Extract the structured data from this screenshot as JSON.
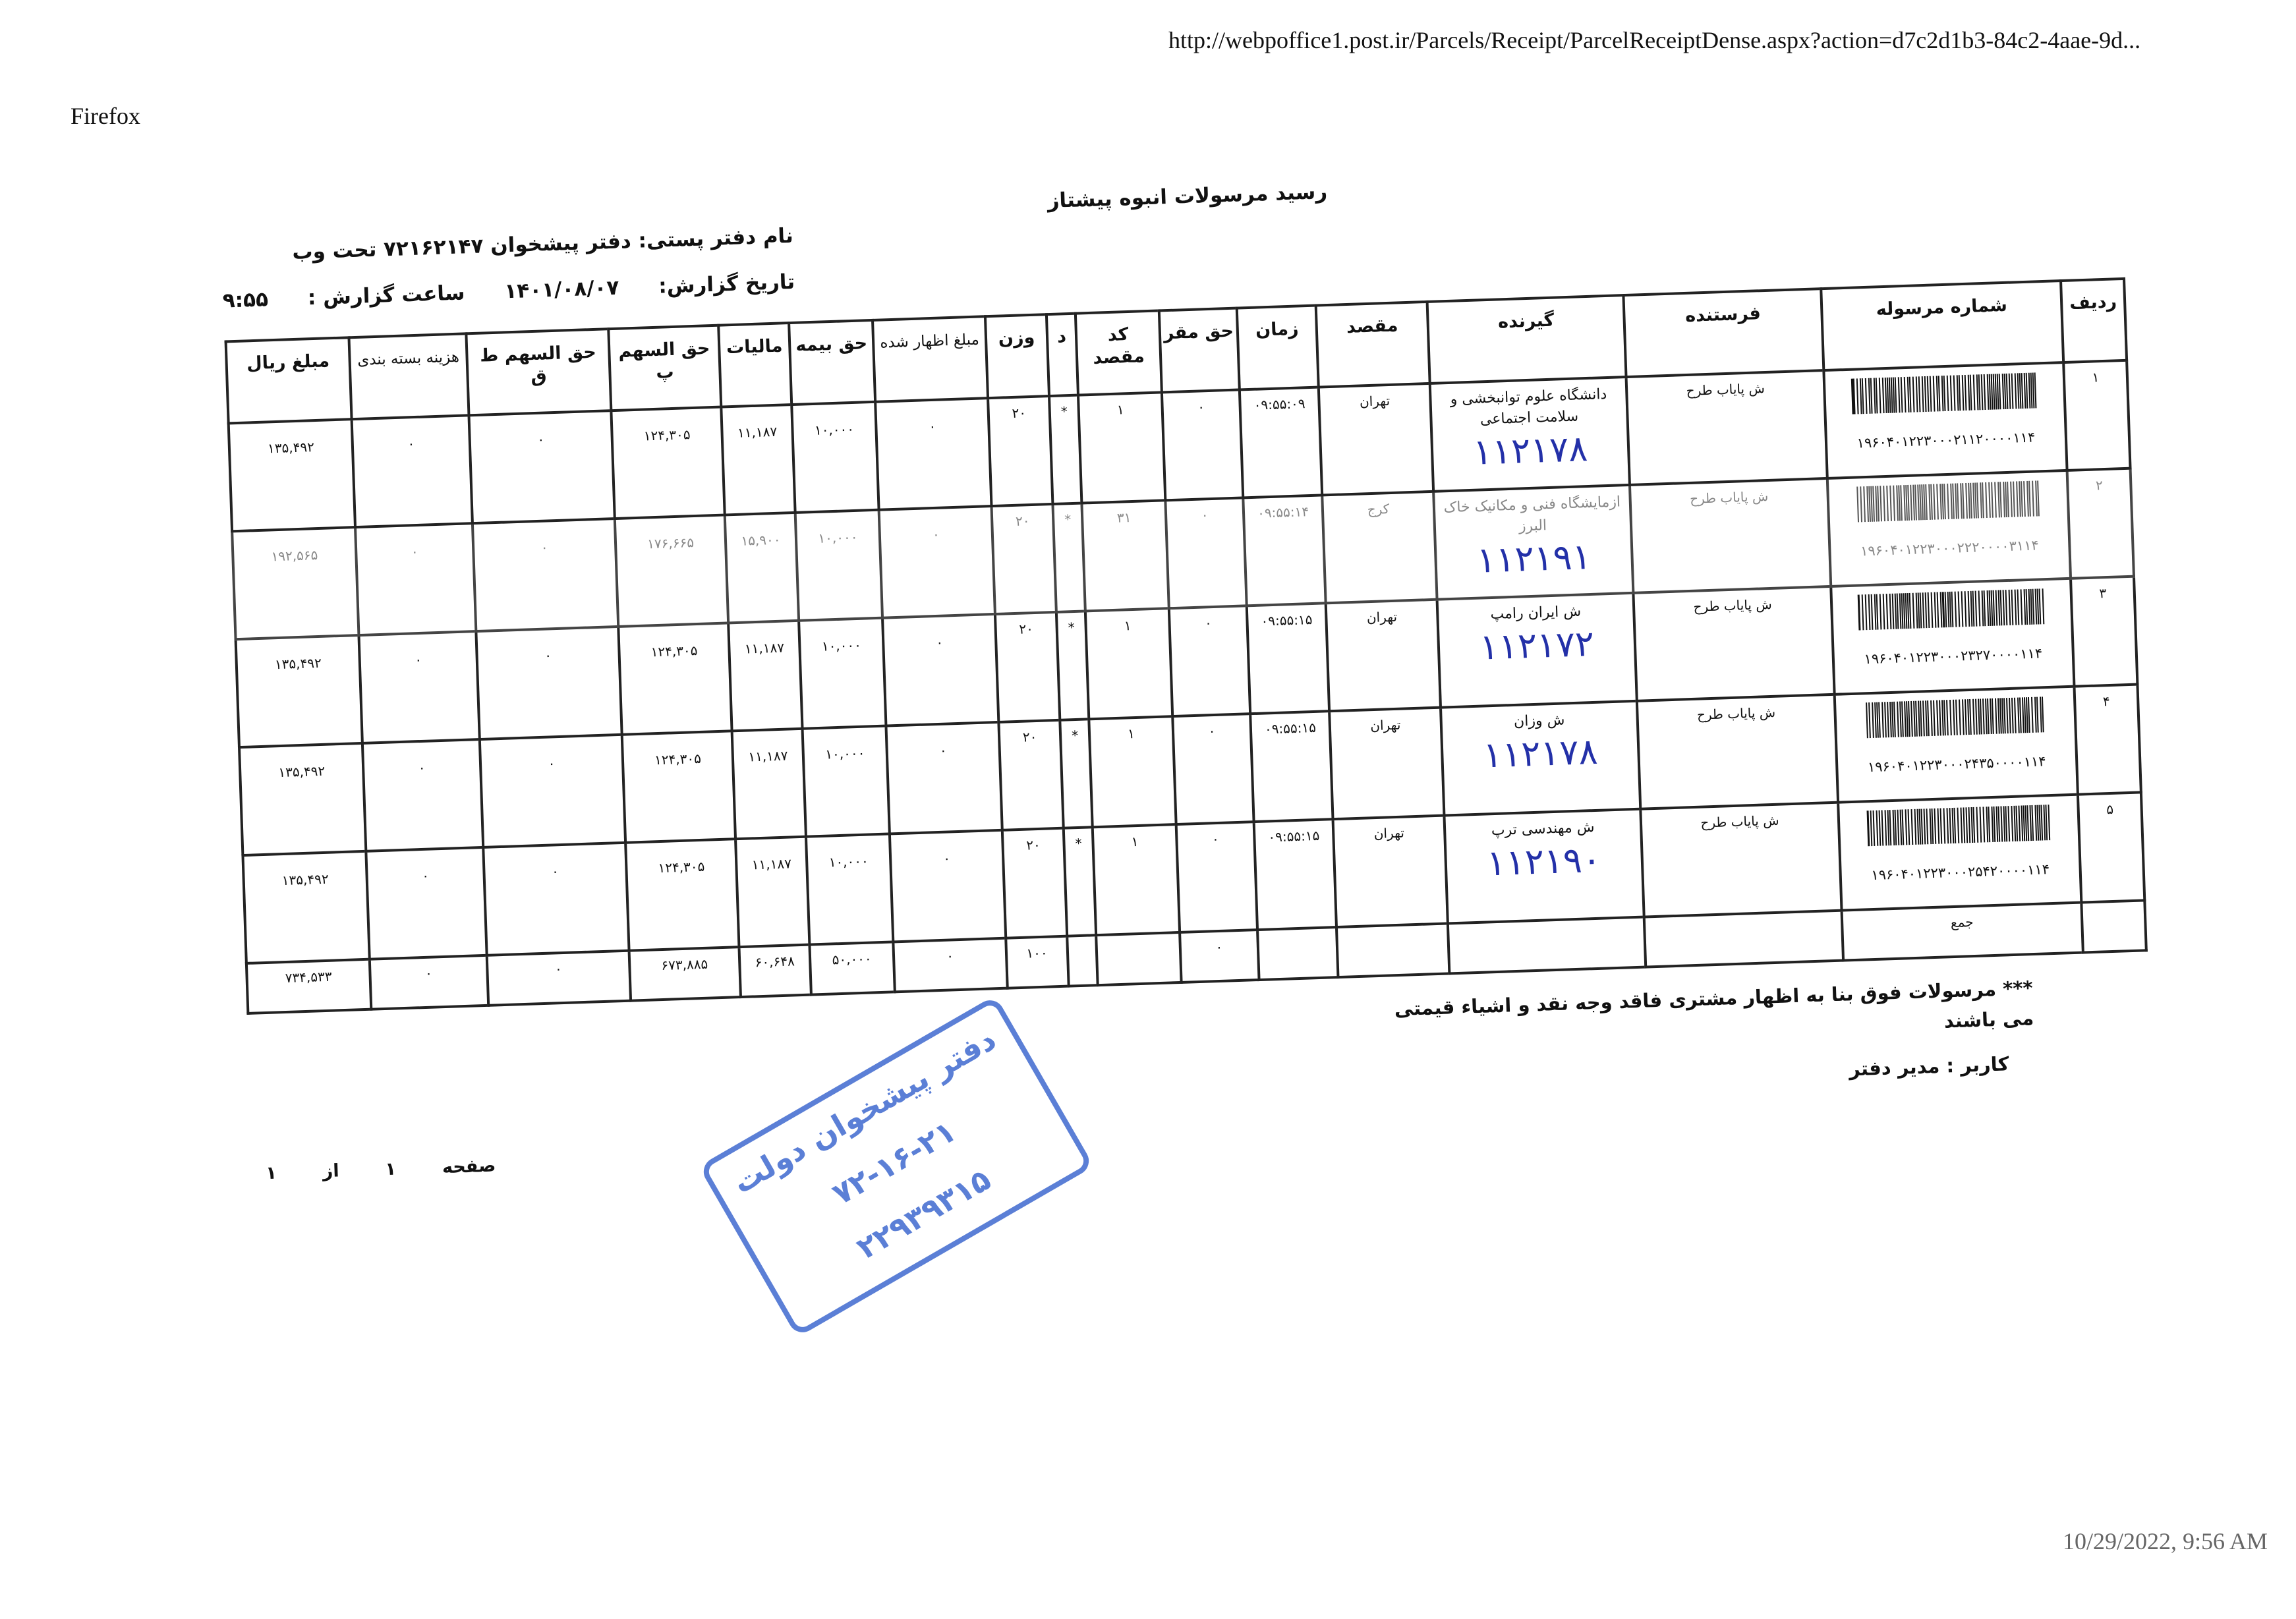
{
  "browser": {
    "name": "Firefox",
    "url": "http://webpoffice1.post.ir/Parcels/Receipt/ParcelReceiptDense.aspx?action=d7c2d1b3-84c2-4aae-9d...",
    "print_datetime": "10/29/2022, 9:56 AM"
  },
  "header": {
    "title": "رسید مرسولات انبوه  پیشتاز",
    "office_label": "نام دفتر پستی:  دفتر پیشخوان ۷۲۱۶۲۱۴۷ تحت وب",
    "report_date_label": "تاریخ گزارش:",
    "report_date": "۱۴۰۱/۰۸/۰۷",
    "report_time_label": "ساعت گزارش :",
    "report_time": "۹:۵۵"
  },
  "table": {
    "columns": [
      "ردیف",
      "شماره مرسوله",
      "فرستنده",
      "گیرنده",
      "مقصد",
      "زمان",
      "حق مقر",
      "کد مقصد",
      "د",
      "وزن",
      "مبلغ اظهار شده",
      "حق بیمه",
      "مالیات",
      "حق السهم پ",
      "حق السهم ط ق",
      "هزینه بسته بندی",
      "مبلغ ریال"
    ],
    "rows": [
      {
        "row": "۱",
        "barcode": "۱۹۶۰۴۰۱۲۲۳۰۰۰۲۱۱۲۰۰۰۰۱۱۴",
        "sender": "ش پایاب طرح",
        "recipient": "دانشگاه علوم توانبخشی و سلامت اجتماعی",
        "handwritten": "۱۱۲۱۷۸",
        "destination": "تهران",
        "time": "۰۹:۵۵:۰۹",
        "base_fee": "۰",
        "dest_code": "۱",
        "d": "*",
        "weight": "۲۰",
        "declared": "۰",
        "insurance": "۱۰,۰۰۰",
        "tax": "۱۱,۱۸۷",
        "share_p": "۱۲۴,۳۰۵",
        "share_tq": "۰",
        "packaging": "۰",
        "amount": "۱۳۵,۴۹۲"
      },
      {
        "row": "۲",
        "barcode": "۱۹۶۰۴۰۱۲۲۳۰۰۰۲۲۲۰۰۰۰۳۱۱۴",
        "sender": "ش پایاب طرح",
        "recipient": "ازمایشگاه فنی و مکانیک خاک البرز",
        "handwritten": "۱۱۲۱۹۱",
        "destination": "کرج",
        "time": "۰۹:۵۵:۱۴",
        "base_fee": "۰",
        "dest_code": "۳۱",
        "d": "*",
        "weight": "۲۰",
        "declared": "۰",
        "insurance": "۱۰,۰۰۰",
        "tax": "۱۵,۹۰۰",
        "share_p": "۱۷۶,۶۶۵",
        "share_tq": "۰",
        "packaging": "۰",
        "amount": "۱۹۲,۵۶۵"
      },
      {
        "row": "۳",
        "barcode": "۱۹۶۰۴۰۱۲۲۳۰۰۰۲۳۲۷۰۰۰۰۱۱۴",
        "sender": "ش پایاب طرح",
        "recipient": "ش ایران رامپ",
        "handwritten": "۱۱۲۱۷۲",
        "destination": "تهران",
        "time": "۰۹:۵۵:۱۵",
        "base_fee": "۰",
        "dest_code": "۱",
        "d": "*",
        "weight": "۲۰",
        "declared": "۰",
        "insurance": "۱۰,۰۰۰",
        "tax": "۱۱,۱۸۷",
        "share_p": "۱۲۴,۳۰۵",
        "share_tq": "۰",
        "packaging": "۰",
        "amount": "۱۳۵,۴۹۲"
      },
      {
        "row": "۴",
        "barcode": "۱۹۶۰۴۰۱۲۲۳۰۰۰۲۴۳۵۰۰۰۰۱۱۴",
        "sender": "ش پایاب طرح",
        "recipient": "ش وزان",
        "handwritten": "۱۱۲۱۷۸",
        "destination": "تهران",
        "time": "۰۹:۵۵:۱۵",
        "base_fee": "۰",
        "dest_code": "۱",
        "d": "*",
        "weight": "۲۰",
        "declared": "۰",
        "insurance": "۱۰,۰۰۰",
        "tax": "۱۱,۱۸۷",
        "share_p": "۱۲۴,۳۰۵",
        "share_tq": "۰",
        "packaging": "۰",
        "amount": "۱۳۵,۴۹۲"
      },
      {
        "row": "۵",
        "barcode": "۱۹۶۰۴۰۱۲۲۳۰۰۰۲۵۴۲۰۰۰۰۱۱۴",
        "sender": "ش پایاب طرح",
        "recipient": "ش مهندسی ترپ",
        "handwritten": "۱۱۲۱۹۰",
        "destination": "تهران",
        "time": "۰۹:۵۵:۱۵",
        "base_fee": "۰",
        "dest_code": "۱",
        "d": "*",
        "weight": "۲۰",
        "declared": "۰",
        "insurance": "۱۰,۰۰۰",
        "tax": "۱۱,۱۸۷",
        "share_p": "۱۲۴,۳۰۵",
        "share_tq": "۰",
        "packaging": "۰",
        "amount": "۱۳۵,۴۹۲"
      }
    ],
    "total": {
      "label": "جمع",
      "base_fee": "۰",
      "weight": "۱۰۰",
      "declared": "۰",
      "insurance": "۵۰,۰۰۰",
      "tax": "۶۰,۶۴۸",
      "share_p": "۶۷۳,۸۸۵",
      "share_tq": "۰",
      "packaging": "۰",
      "amount": "۷۳۴,۵۳۳"
    }
  },
  "footer": {
    "note": "*** مرسولات فوق  بنا به اظهار مشتری فاقد وجه نقد و اشیاء قیمتی می باشند",
    "user": "کاربر : مدیر دفتر",
    "page_label": "صفحه",
    "page_current": "۱",
    "page_of": "از",
    "page_total": "۱"
  },
  "stamp": {
    "line1": "دفتر پیشخوان دولت",
    "line2": "۷۲-۱۶-۲۱",
    "line3": "۲۲۹۳۹۳۱۵",
    "color": "#5b7fd6"
  },
  "colors": {
    "ink": "#111111",
    "handwriting": "#2330a8"
  }
}
